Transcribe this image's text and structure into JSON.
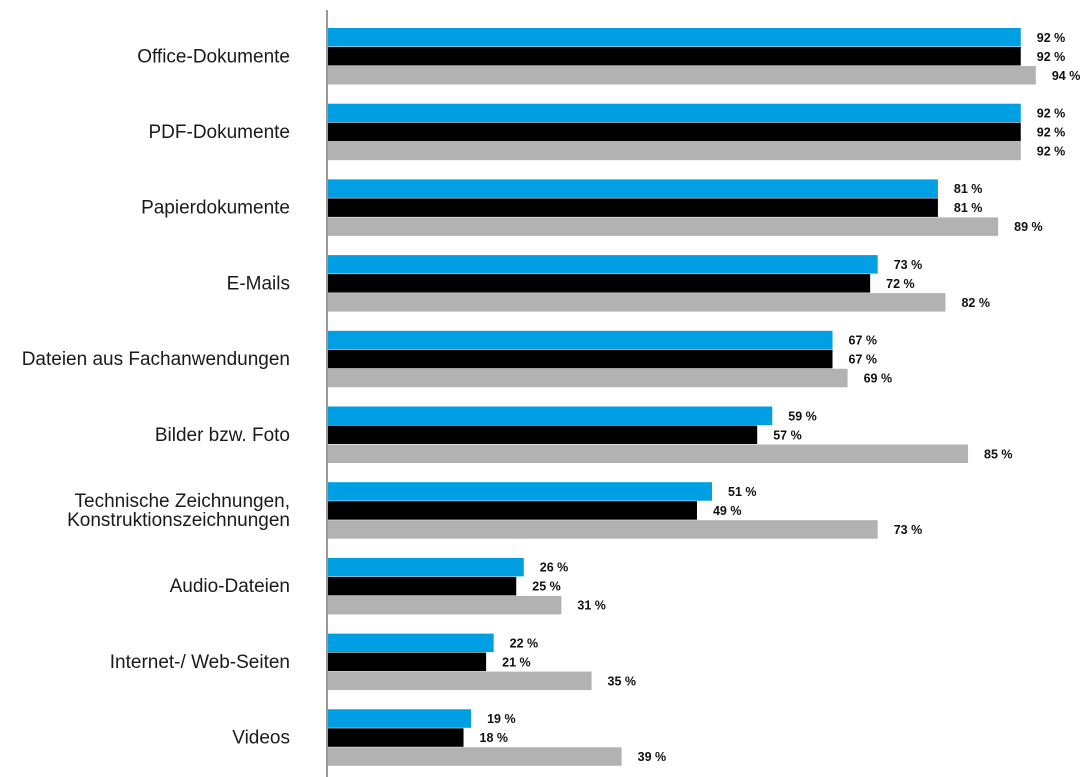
{
  "chart_data": {
    "type": "bar",
    "orientation": "horizontal",
    "categories": [
      [
        "Office-Dokumente"
      ],
      [
        "PDF-Dokumente"
      ],
      [
        "Papierdokumente"
      ],
      [
        "E-Mails"
      ],
      [
        "Dateien aus Fachanwendungen"
      ],
      [
        "Bilder bzw. Foto"
      ],
      [
        "Technische Zeichnungen,",
        "Konstruktionszeichnungen"
      ],
      [
        "Audio-Dateien"
      ],
      [
        "Internet-/ Web-Seiten"
      ],
      [
        "Videos"
      ]
    ],
    "series": [
      {
        "color": "#009ee3",
        "values": [
          92,
          92,
          81,
          73,
          67,
          59,
          51,
          26,
          22,
          19
        ]
      },
      {
        "color": "#000000",
        "values": [
          92,
          92,
          81,
          72,
          67,
          57,
          49,
          25,
          21,
          18
        ]
      },
      {
        "color": "#b2b2b2",
        "values": [
          94,
          92,
          89,
          82,
          69,
          85,
          73,
          31,
          35,
          39
        ]
      }
    ],
    "value_suffix": " %",
    "xlim": [
      0,
      100
    ],
    "grid": false,
    "legend": "none"
  }
}
